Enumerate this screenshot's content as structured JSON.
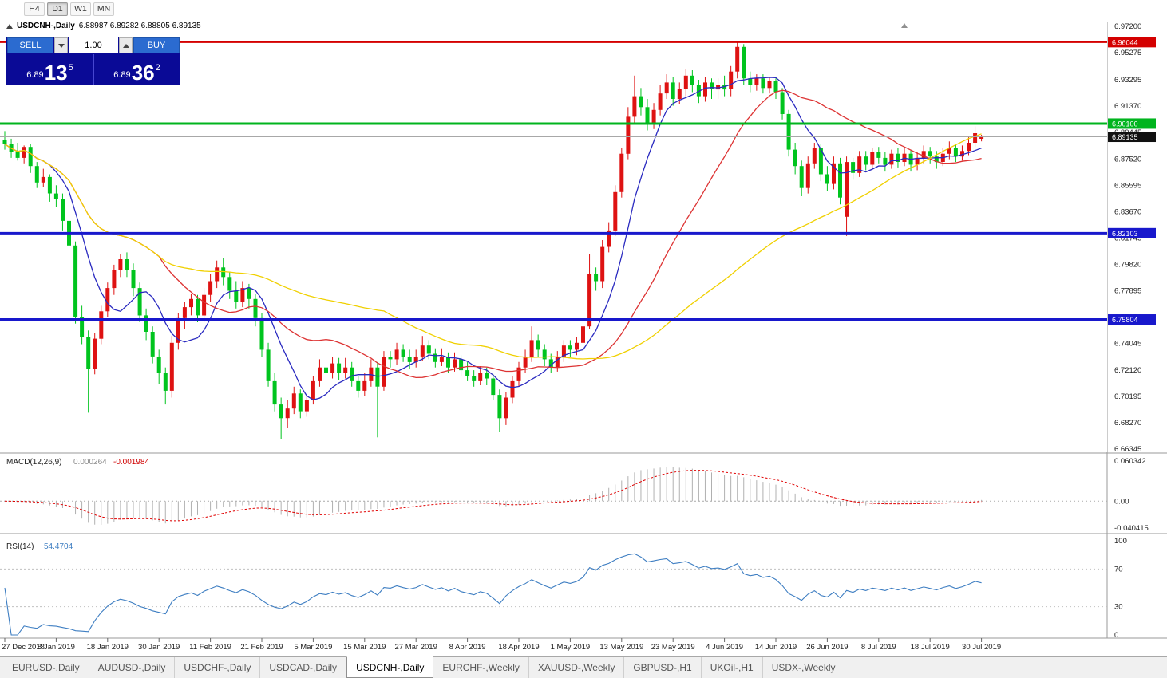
{
  "toolbar": {
    "timeframes": [
      {
        "label": "H4",
        "active": false
      },
      {
        "label": "D1",
        "active": true
      },
      {
        "label": "W1",
        "active": false
      },
      {
        "label": "MN",
        "active": false
      }
    ]
  },
  "chart_header": {
    "symbol": "USDCNH-,Daily",
    "ohlc_text": "6.88987 6.89282 6.88805 6.89135"
  },
  "trade_panel": {
    "sell_label": "SELL",
    "buy_label": "BUY",
    "volume": "1.00",
    "sell_price": {
      "prefix": "6.89",
      "big": "13",
      "sup": "5"
    },
    "buy_price": {
      "prefix": "6.89",
      "big": "36",
      "sup": "2"
    }
  },
  "bottom_tabs": {
    "items": [
      "EURUSD-,Daily",
      "AUDUSD-,Daily",
      "USDCHF-,Daily",
      "USDCAD-,Daily",
      "USDCNH-,Daily",
      "EURCHF-,Weekly",
      "XAUUSD-,Weekly",
      "GBPUSD-,H1",
      "UKOil-,H1",
      "USDX-,Weekly"
    ],
    "active": "USDCNH-,Daily"
  },
  "chart_data": {
    "type": "candlestick",
    "title": "USDCNH-,Daily",
    "colors": {
      "bull": "#de1212",
      "bear": "#00c41e",
      "current_line": "#a8a8a8",
      "current_tag": "#111111"
    },
    "x_label_step": 8,
    "x_labels": [
      "27 Dec 2018",
      "8 Jan 2019",
      "18 Jan 2019",
      "30 Jan 2019",
      "11 Feb 2019",
      "21 Feb 2019",
      "5 Mar 2019",
      "15 Mar 2019",
      "27 Mar 2019",
      "8 Apr 2019",
      "18 Apr 2019",
      "1 May 2019",
      "13 May 2019",
      "23 May 2019",
      "4 Jun 2019",
      "14 Jun 2019",
      "26 Jun 2019",
      "8 Jul 2019",
      "18 Jul 2019",
      "30 Jul 2019"
    ],
    "y_axis_labels": [
      "6.97200",
      "6.95275",
      "6.93295",
      "6.91370",
      "6.89445",
      "6.87520",
      "6.85595",
      "6.83670",
      "6.81745",
      "6.79820",
      "6.77895",
      "6.75970",
      "6.74045",
      "6.72120",
      "6.70195",
      "6.68270",
      "6.66345"
    ],
    "y_max": 6.972,
    "y_min": 6.66345,
    "levels": [
      {
        "price": 6.96044,
        "label": "6.96044",
        "color": "#d40000",
        "width": 2
      },
      {
        "price": 6.901,
        "label": "6.90100",
        "color": "#00b41e",
        "width": 3
      },
      {
        "price": 6.82103,
        "label": "6.82103",
        "color": "#1818cc",
        "width": 3
      },
      {
        "price": 6.75804,
        "label": "6.75804",
        "color": "#1818cc",
        "width": 3
      }
    ],
    "current_price": {
      "price": 6.89135,
      "label": "6.89135"
    },
    "moving_averages": [
      {
        "period": 8,
        "color": "#2a2ac0"
      },
      {
        "period": 25,
        "color": "#dd3333"
      },
      {
        "period": 60,
        "color": "#f0d000"
      }
    ],
    "macd": {
      "title": "MACD(12,26,9)",
      "main_value": "0.000264",
      "signal_value": "-0.001984",
      "fast": 12,
      "slow": 26,
      "signal": 9,
      "y_max": 0.060342,
      "y_min": -0.040415,
      "axis_labels": [
        "0.060342",
        "0.00",
        "-0.040415"
      ]
    },
    "rsi": {
      "title": "RSI(14)",
      "value": "54.4704",
      "period": 14,
      "levels": [
        70,
        30
      ],
      "axis_labels": [
        "100",
        "70",
        "30",
        "0"
      ]
    },
    "candles_ohlc": [
      [
        6.889,
        6.8955,
        6.882,
        6.886
      ],
      [
        6.886,
        6.89,
        6.876,
        6.88
      ],
      [
        6.88,
        6.887,
        6.874,
        6.876
      ],
      [
        6.876,
        6.885,
        6.872,
        6.884
      ],
      [
        6.884,
        6.886,
        6.865,
        6.87
      ],
      [
        6.87,
        6.873,
        6.854,
        6.858
      ],
      [
        6.858,
        6.868,
        6.855,
        6.862
      ],
      [
        6.862,
        6.864,
        6.844,
        6.85
      ],
      [
        6.85,
        6.856,
        6.84,
        6.846
      ],
      [
        6.846,
        6.85,
        6.823,
        6.83
      ],
      [
        6.83,
        6.834,
        6.806,
        6.812
      ],
      [
        6.812,
        6.815,
        6.755,
        6.76
      ],
      [
        6.76,
        6.768,
        6.74,
        6.745
      ],
      [
        6.745,
        6.75,
        6.69,
        6.722
      ],
      [
        6.722,
        6.748,
        6.718,
        6.744
      ],
      [
        6.744,
        6.768,
        6.74,
        6.764
      ],
      [
        6.764,
        6.785,
        6.76,
        6.781
      ],
      [
        6.781,
        6.798,
        6.776,
        6.794
      ],
      [
        6.794,
        6.806,
        6.789,
        6.802
      ],
      [
        6.802,
        6.807,
        6.789,
        6.794
      ],
      [
        6.794,
        6.799,
        6.775,
        6.781
      ],
      [
        6.781,
        6.785,
        6.756,
        6.761
      ],
      [
        6.761,
        6.766,
        6.743,
        6.749
      ],
      [
        6.749,
        6.753,
        6.726,
        6.731
      ],
      [
        6.731,
        6.736,
        6.711,
        6.719
      ],
      [
        6.719,
        6.723,
        6.696,
        6.706
      ],
      [
        6.706,
        6.746,
        6.701,
        6.741
      ],
      [
        6.741,
        6.763,
        6.736,
        6.759
      ],
      [
        6.759,
        6.771,
        6.751,
        6.767
      ],
      [
        6.767,
        6.777,
        6.761,
        6.773
      ],
      [
        6.773,
        6.776,
        6.756,
        6.761
      ],
      [
        6.761,
        6.781,
        6.756,
        6.776
      ],
      [
        6.776,
        6.791,
        6.771,
        6.786
      ],
      [
        6.786,
        6.801,
        6.781,
        6.796
      ],
      [
        6.796,
        6.803,
        6.783,
        6.789
      ],
      [
        6.789,
        6.793,
        6.773,
        6.779
      ],
      [
        6.779,
        6.786,
        6.766,
        6.771
      ],
      [
        6.771,
        6.786,
        6.767,
        6.781
      ],
      [
        6.781,
        6.784,
        6.766,
        6.773
      ],
      [
        6.773,
        6.777,
        6.753,
        6.759
      ],
      [
        6.759,
        6.763,
        6.731,
        6.736
      ],
      [
        6.736,
        6.741,
        6.709,
        6.713
      ],
      [
        6.713,
        6.719,
        6.691,
        6.696
      ],
      [
        6.696,
        6.701,
        6.671,
        6.686
      ],
      [
        6.686,
        6.699,
        6.679,
        6.693
      ],
      [
        6.693,
        6.709,
        6.689,
        6.704
      ],
      [
        6.704,
        6.707,
        6.686,
        6.691
      ],
      [
        6.691,
        6.703,
        6.687,
        6.699
      ],
      [
        6.699,
        6.717,
        6.696,
        6.713
      ],
      [
        6.713,
        6.729,
        6.709,
        6.723
      ],
      [
        6.723,
        6.727,
        6.713,
        6.719
      ],
      [
        6.719,
        6.731,
        6.715,
        6.726
      ],
      [
        6.726,
        6.73,
        6.714,
        6.719
      ],
      [
        6.719,
        6.73,
        6.715,
        6.723
      ],
      [
        6.723,
        6.727,
        6.709,
        6.713
      ],
      [
        6.713,
        6.717,
        6.701,
        6.706
      ],
      [
        6.706,
        6.719,
        6.702,
        6.713
      ],
      [
        6.713,
        6.729,
        6.709,
        6.723
      ],
      [
        6.723,
        6.727,
        6.672,
        6.709
      ],
      [
        6.709,
        6.735,
        6.706,
        6.731
      ],
      [
        6.731,
        6.735,
        6.723,
        6.729
      ],
      [
        6.729,
        6.741,
        6.725,
        6.736
      ],
      [
        6.736,
        6.74,
        6.727,
        6.731
      ],
      [
        6.731,
        6.736,
        6.722,
        6.727
      ],
      [
        6.727,
        6.736,
        6.723,
        6.731
      ],
      [
        6.731,
        6.746,
        6.728,
        6.739
      ],
      [
        6.739,
        6.743,
        6.729,
        6.733
      ],
      [
        6.733,
        6.737,
        6.723,
        6.727
      ],
      [
        6.727,
        6.737,
        6.724,
        6.731
      ],
      [
        6.731,
        6.734,
        6.719,
        6.723
      ],
      [
        6.723,
        6.734,
        6.72,
        6.729
      ],
      [
        6.729,
        6.732,
        6.717,
        6.721
      ],
      [
        6.721,
        6.727,
        6.713,
        6.717
      ],
      [
        6.717,
        6.721,
        6.709,
        6.713
      ],
      [
        6.713,
        6.724,
        6.71,
        6.719
      ],
      [
        6.719,
        6.723,
        6.71,
        6.715
      ],
      [
        6.715,
        6.718,
        6.699,
        6.703
      ],
      [
        6.703,
        6.707,
        6.676,
        6.686
      ],
      [
        6.686,
        6.705,
        6.681,
        6.701
      ],
      [
        6.701,
        6.717,
        6.697,
        6.713
      ],
      [
        6.713,
        6.727,
        6.709,
        6.723
      ],
      [
        6.723,
        6.736,
        6.719,
        6.731
      ],
      [
        6.731,
        6.753,
        6.727,
        6.743
      ],
      [
        6.743,
        6.747,
        6.731,
        6.736
      ],
      [
        6.736,
        6.74,
        6.724,
        6.729
      ],
      [
        6.729,
        6.733,
        6.719,
        6.723
      ],
      [
        6.723,
        6.735,
        6.72,
        6.731
      ],
      [
        6.731,
        6.743,
        6.727,
        6.739
      ],
      [
        6.739,
        6.743,
        6.731,
        6.736
      ],
      [
        6.736,
        6.745,
        6.732,
        6.741
      ],
      [
        6.741,
        6.757,
        6.737,
        6.753
      ],
      [
        6.753,
        6.806,
        6.751,
        6.791
      ],
      [
        6.791,
        6.796,
        6.779,
        6.786
      ],
      [
        6.786,
        6.816,
        6.781,
        6.811
      ],
      [
        6.811,
        6.829,
        6.807,
        6.823
      ],
      [
        6.823,
        6.856,
        6.819,
        6.851
      ],
      [
        6.851,
        6.883,
        6.847,
        6.879
      ],
      [
        6.879,
        6.913,
        6.875,
        6.906
      ],
      [
        6.906,
        6.936,
        6.901,
        6.921
      ],
      [
        6.921,
        6.927,
        6.907,
        6.913
      ],
      [
        6.913,
        6.919,
        6.896,
        6.901
      ],
      [
        6.901,
        6.916,
        6.897,
        6.911
      ],
      [
        6.911,
        6.929,
        6.907,
        6.923
      ],
      [
        6.923,
        6.937,
        6.919,
        6.931
      ],
      [
        6.931,
        6.935,
        6.914,
        6.919
      ],
      [
        6.919,
        6.931,
        6.915,
        6.926
      ],
      [
        6.926,
        6.941,
        6.921,
        6.936
      ],
      [
        6.936,
        6.94,
        6.924,
        6.929
      ],
      [
        6.929,
        6.933,
        6.916,
        6.921
      ],
      [
        6.921,
        6.935,
        6.917,
        6.931
      ],
      [
        6.931,
        6.934,
        6.919,
        6.926
      ],
      [
        6.926,
        6.934,
        6.919,
        6.929
      ],
      [
        6.929,
        6.936,
        6.921,
        6.926
      ],
      [
        6.926,
        6.943,
        6.921,
        6.939
      ],
      [
        6.939,
        6.9604,
        6.934,
        6.957
      ],
      [
        6.957,
        6.959,
        6.929,
        6.934
      ],
      [
        6.934,
        6.939,
        6.924,
        6.929
      ],
      [
        6.929,
        6.937,
        6.925,
        6.934
      ],
      [
        6.934,
        6.937,
        6.923,
        6.927
      ],
      [
        6.927,
        6.935,
        6.923,
        6.932
      ],
      [
        6.932,
        6.934,
        6.919,
        6.924
      ],
      [
        6.924,
        6.927,
        6.904,
        6.908
      ],
      [
        6.908,
        6.911,
        6.877,
        6.882
      ],
      [
        6.882,
        6.887,
        6.864,
        6.87
      ],
      [
        6.87,
        6.874,
        6.848,
        6.854
      ],
      [
        6.854,
        6.877,
        6.85,
        6.872
      ],
      [
        6.872,
        6.887,
        6.868,
        6.883
      ],
      [
        6.883,
        6.886,
        6.859,
        6.864
      ],
      [
        6.864,
        6.87,
        6.852,
        6.857
      ],
      [
        6.857,
        6.877,
        6.853,
        6.872
      ],
      [
        6.872,
        6.876,
        6.842,
        6.847
      ],
      [
        6.833,
        6.877,
        6.819,
        6.873
      ],
      [
        6.873,
        6.876,
        6.86,
        6.865
      ],
      [
        6.865,
        6.881,
        6.862,
        6.877
      ],
      [
        6.877,
        6.881,
        6.867,
        6.871
      ],
      [
        6.871,
        6.883,
        6.868,
        6.88
      ],
      [
        6.88,
        6.884,
        6.872,
        6.876
      ],
      [
        6.876,
        6.88,
        6.866,
        6.871
      ],
      [
        6.871,
        6.882,
        6.868,
        6.879
      ],
      [
        6.879,
        6.883,
        6.869,
        6.873
      ],
      [
        6.873,
        6.884,
        6.87,
        6.879
      ],
      [
        6.879,
        6.882,
        6.866,
        6.871
      ],
      [
        6.871,
        6.88,
        6.867,
        6.876
      ],
      [
        6.876,
        6.885,
        6.872,
        6.881
      ],
      [
        6.881,
        6.884,
        6.872,
        6.877
      ],
      [
        6.877,
        6.881,
        6.868,
        6.873
      ],
      [
        6.873,
        6.883,
        6.87,
        6.879
      ],
      [
        6.879,
        6.888,
        6.875,
        6.883
      ],
      [
        6.883,
        6.886,
        6.873,
        6.877
      ],
      [
        6.877,
        6.885,
        6.874,
        6.881
      ],
      [
        6.881,
        6.891,
        6.878,
        6.887
      ],
      [
        6.887,
        6.899,
        6.884,
        6.894
      ],
      [
        6.88987,
        6.89282,
        6.88805,
        6.89135
      ]
    ]
  }
}
